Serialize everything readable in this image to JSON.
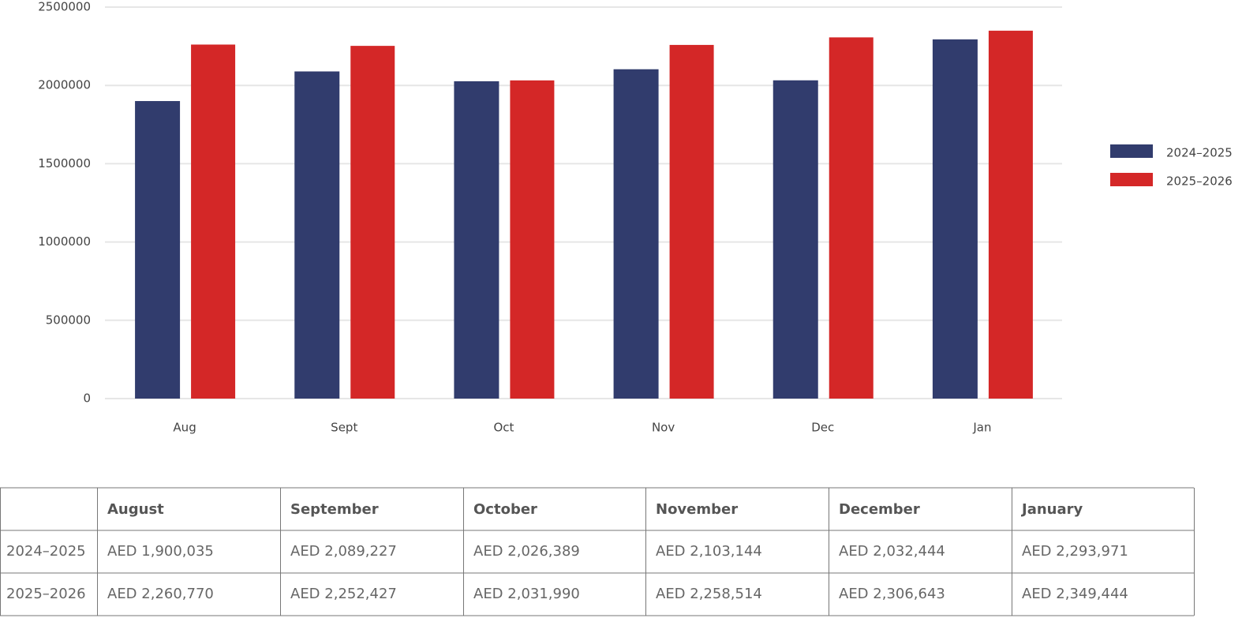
{
  "chart_data": {
    "type": "bar",
    "categories": [
      "Aug",
      "Sept",
      "Oct",
      "Nov",
      "Dec",
      "Jan"
    ],
    "series": [
      {
        "name": "2024–2025",
        "color": "#313c6d",
        "values": [
          1900035,
          2089227,
          2026389,
          2103144,
          2032444,
          2293971
        ]
      },
      {
        "name": "2025–2026",
        "color": "#d42727",
        "values": [
          2260770,
          2252427,
          2031990,
          2258514,
          2306643,
          2349444
        ]
      }
    ],
    "ylim": [
      0,
      2500000
    ],
    "yticks": [
      0,
      500000,
      1000000,
      1500000,
      2000000,
      2500000
    ],
    "grid": true,
    "legend": "right"
  },
  "table": {
    "header": [
      "August",
      "September",
      "October",
      "November",
      "December",
      "January"
    ],
    "rows": [
      {
        "label": "2024–2025",
        "cells": [
          "AED 1,900,035",
          "AED 2,089,227",
          "AED 2,026,389",
          "AED 2,103,144",
          "AED 2,032,444",
          "AED 2,293,971"
        ]
      },
      {
        "label": "2025–2026",
        "cells": [
          "AED 2,260,770",
          "AED 2,252,427",
          "AED 2,031,990",
          "AED 2,258,514",
          "AED 2,306,643",
          "AED 2,349,444"
        ]
      }
    ]
  }
}
